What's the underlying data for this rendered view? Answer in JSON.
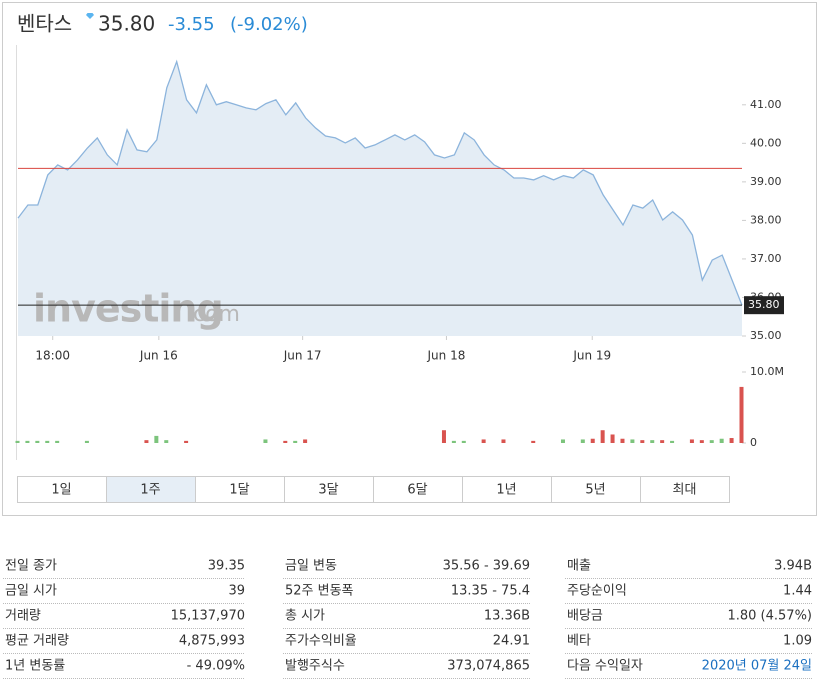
{
  "header": {
    "name": "벤타스",
    "price": "35.80",
    "change": "-3.55",
    "change_pct": "(-9.02%)"
  },
  "watermark": {
    "main": "investing",
    "suffix": ".com"
  },
  "chart_data": [
    {
      "type": "area",
      "color": "#8cb4dc",
      "fill": "#e4edf5",
      "x": [
        0,
        1,
        2,
        3,
        4,
        5,
        6,
        7,
        8,
        9,
        10,
        11,
        12,
        13,
        14,
        15,
        16,
        17,
        18,
        19,
        20,
        21,
        22,
        23,
        24,
        25,
        26,
        27,
        28,
        29,
        30,
        31,
        32,
        33,
        34,
        35,
        36,
        37,
        38,
        39,
        40,
        41,
        42,
        43,
        44,
        45,
        46,
        47,
        48,
        49,
        50,
        51,
        52,
        53,
        54,
        55,
        56,
        57,
        58,
        59,
        60,
        61,
        62,
        63,
        64,
        65,
        66,
        67,
        68,
        69,
        70,
        71,
        72,
        73
      ],
      "values": [
        38.06,
        38.4,
        38.4,
        39.18,
        39.44,
        39.31,
        39.57,
        39.88,
        40.14,
        39.7,
        39.44,
        40.35,
        39.83,
        39.78,
        40.09,
        41.44,
        42.12,
        41.13,
        40.79,
        41.52,
        41.0,
        41.08,
        41.0,
        40.92,
        40.87,
        41.03,
        41.13,
        40.74,
        41.05,
        40.66,
        40.4,
        40.19,
        40.14,
        40.01,
        40.14,
        39.88,
        39.96,
        40.09,
        40.22,
        40.09,
        40.22,
        40.04,
        39.7,
        39.62,
        39.7,
        40.27,
        40.09,
        39.7,
        39.44,
        39.31,
        39.1,
        39.1,
        39.05,
        39.16,
        39.05,
        39.16,
        39.1,
        39.31,
        39.18,
        38.66,
        38.27,
        37.88,
        38.4,
        38.32,
        38.53,
        38.01,
        38.22,
        38.01,
        37.62,
        36.45,
        36.97,
        37.1,
        36.45,
        35.8
      ],
      "xlim": [
        0,
        73
      ],
      "xticks": [
        {
          "value": 3.5,
          "label": "18:00"
        },
        {
          "value": 14.2,
          "label": "Jun 16"
        },
        {
          "value": 28.7,
          "label": "Jun 17"
        },
        {
          "value": 43.2,
          "label": "Jun 18"
        },
        {
          "value": 57.9,
          "label": "Jun 19"
        }
      ],
      "ylim": [
        35,
        42.5
      ],
      "yticks": [
        {
          "value": 35,
          "label": "35.00"
        },
        {
          "value": 36,
          "label": "36.00"
        },
        {
          "value": 37,
          "label": "37.00"
        },
        {
          "value": 38,
          "label": "38.00"
        },
        {
          "value": 39,
          "label": "39.00"
        },
        {
          "value": 40,
          "label": "40.00"
        },
        {
          "value": 41,
          "label": "41.00"
        }
      ],
      "reference_lines": [
        {
          "value": 39.35,
          "color": "#d9443f"
        },
        {
          "value": 35.8,
          "label": "35.80",
          "color": "#222222"
        }
      ]
    },
    {
      "type": "bar",
      "up_color": "#7cc47c",
      "down_color": "#d9534f",
      "values": [
        0.3,
        0.3,
        0.3,
        0.3,
        0.3,
        null,
        null,
        0.3,
        null,
        null,
        null,
        null,
        null,
        0.4,
        1.0,
        0.4,
        null,
        0.3,
        null,
        null,
        null,
        null,
        null,
        null,
        null,
        0.5,
        null,
        0.3,
        0.3,
        0.5,
        null,
        null,
        null,
        null,
        null,
        null,
        null,
        null,
        null,
        null,
        null,
        null,
        null,
        1.8,
        0.3,
        0.3,
        null,
        0.5,
        null,
        0.5,
        null,
        null,
        0.3,
        null,
        null,
        0.5,
        null,
        0.5,
        0.6,
        1.8,
        1.2,
        0.6,
        0.5,
        0.4,
        0.4,
        0.4,
        0.3,
        null,
        0.5,
        0.4,
        0.4,
        0.6,
        0.7,
        7.9
      ],
      "ylim": [
        0,
        10
      ],
      "yticks": [
        {
          "value": 10,
          "label": "10.0M"
        },
        0
      ]
    }
  ],
  "periods": [
    "1일",
    "1주",
    "1달",
    "3달",
    "6달",
    "1년",
    "5년",
    "최대"
  ],
  "selected_period": 1,
  "stats": [
    [
      [
        "전일 종가",
        "39.35"
      ],
      [
        "금일 시가",
        "39"
      ],
      [
        "거래량",
        "15,137,970"
      ],
      [
        "평균 거래량",
        "4,875,993"
      ],
      [
        "1년 변동률",
        "- 49.09%"
      ]
    ],
    [
      [
        "금일 변동",
        "35.56 - 39.69"
      ],
      [
        "52주 변동폭",
        "13.35 - 75.4"
      ],
      [
        "총 시가",
        "13.36B"
      ],
      [
        "주가수익비율",
        "24.91"
      ],
      [
        "발행주식수",
        "373,074,865"
      ]
    ],
    [
      [
        "매출",
        "3.94B"
      ],
      [
        "주당순이익",
        "1.44"
      ],
      [
        "배당금",
        "1.80 (4.57%)"
      ],
      [
        "베타",
        "1.09"
      ],
      [
        "다음 수익일자",
        "2020년 07월 24일"
      ]
    ]
  ]
}
